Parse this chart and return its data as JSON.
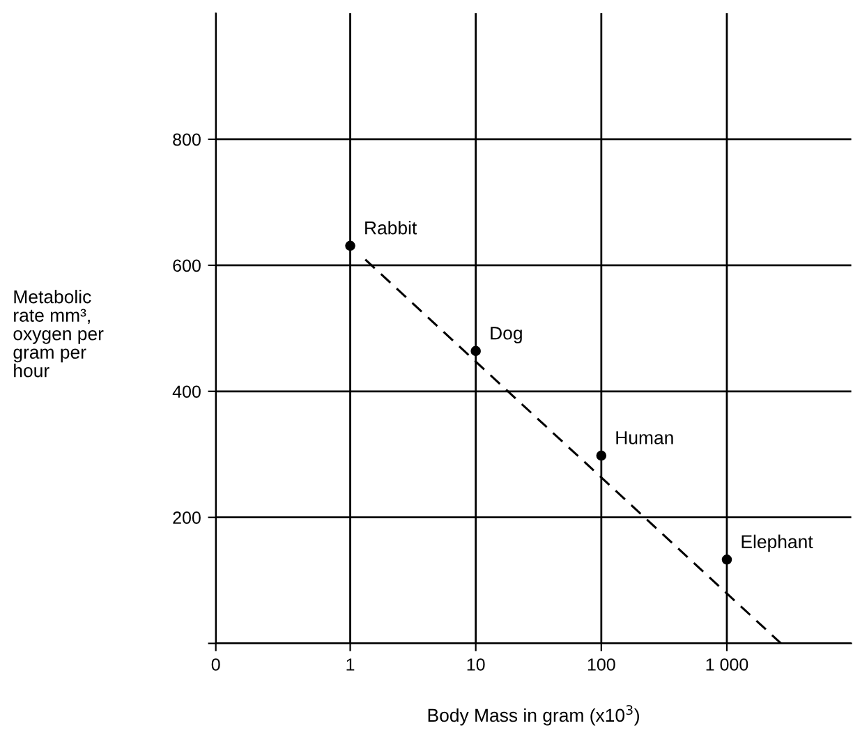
{
  "chart_data": {
    "type": "scatter",
    "xlabel": "Body Mass in gram (x10$^{3}$)",
    "ylabel": "Metabolic\nrate mm³,\noxygen per\ngram per\nhour",
    "log": "x",
    "xlim": [
      0.085,
      9800
    ],
    "xticks": [
      {
        "value": 0.085,
        "label": "0"
      },
      {
        "value": 1,
        "label": "1"
      },
      {
        "value": 10,
        "label": "10"
      },
      {
        "value": 100,
        "label": "100"
      },
      {
        "value": 1000,
        "label": "1 000"
      }
    ],
    "ylim": [
      0,
      1000
    ],
    "yticks": [
      {
        "value": 0,
        "label": null
      },
      200,
      400,
      600,
      800
    ],
    "grid": true,
    "marker": "circle",
    "series": [
      {
        "color": "#000000",
        "x": [
          1,
          10,
          100,
          1000
        ],
        "values": [
          631,
          464,
          298,
          133
        ]
      },
      {
        "type": "line",
        "color": "#000000",
        "line_style": "dashed",
        "marker": "none",
        "x": [
          1.32,
          2700
        ],
        "values": [
          609,
          0
        ]
      }
    ],
    "annotations": [
      {
        "text": "Rabbit",
        "x": 1,
        "y": 631
      },
      {
        "text": "Dog",
        "x": 10,
        "y": 464
      },
      {
        "text": "Human",
        "x": 100,
        "y": 298
      },
      {
        "text": "Elephant",
        "x": 1000,
        "y": 133
      }
    ]
  }
}
